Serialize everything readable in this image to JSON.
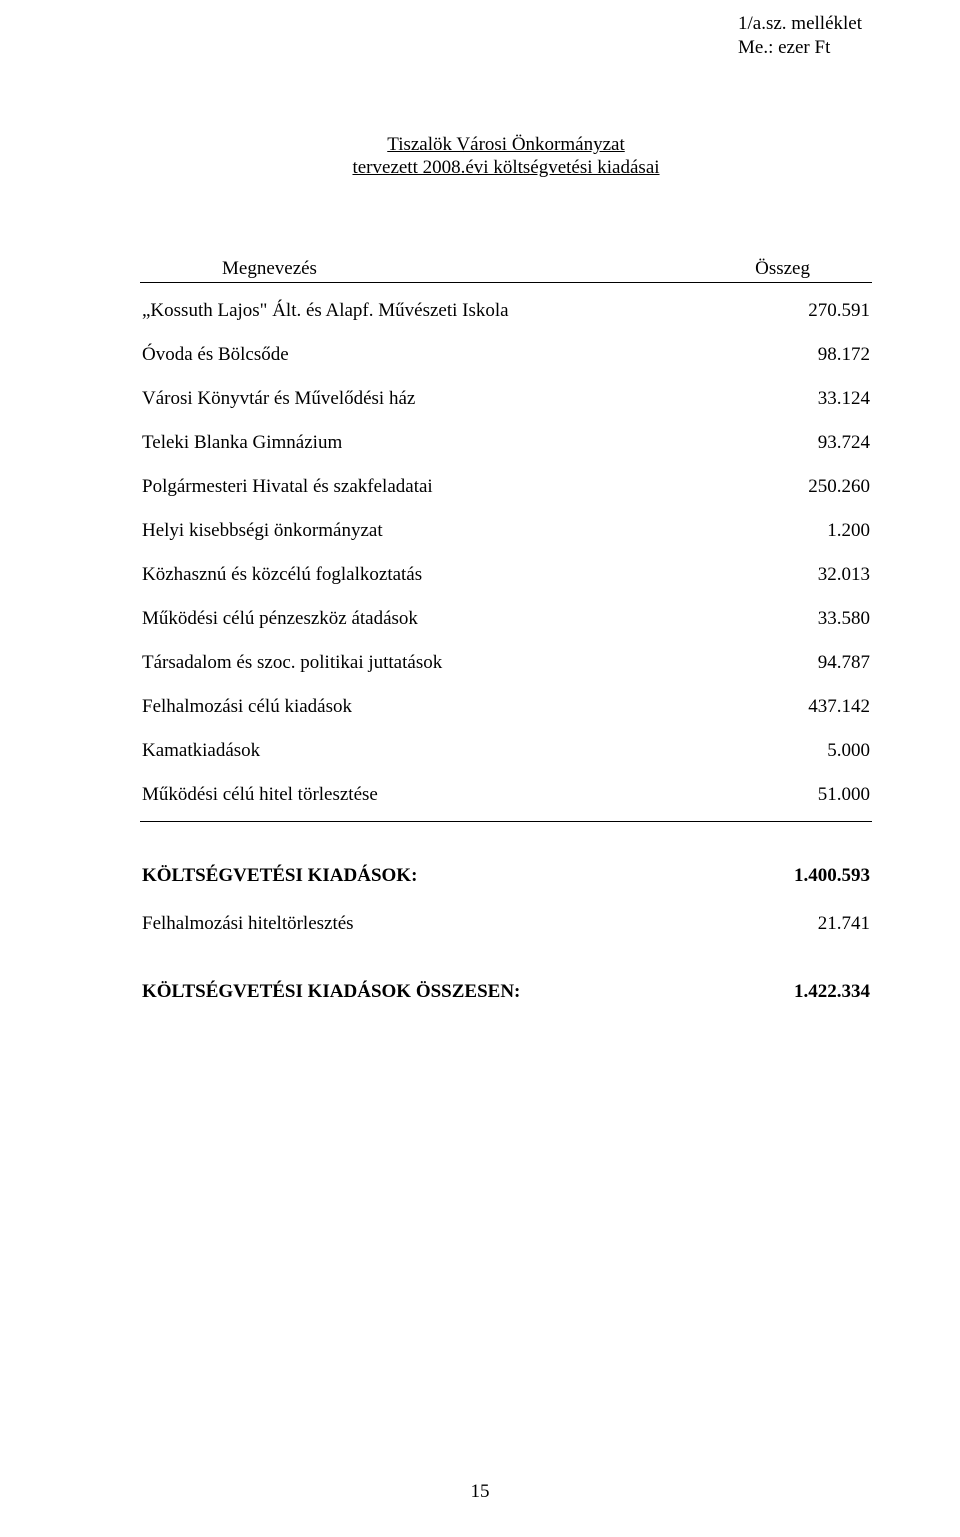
{
  "header": {
    "attachment": "1/a.sz. melléklet",
    "unit": "Me.: ezer Ft"
  },
  "title": {
    "line1": "Tiszalök Városi Önkormányzat",
    "line2": "tervezett 2008.évi költségvetési kiadásai"
  },
  "table": {
    "col_label": "Megnevezés",
    "col_value": "Összeg",
    "rows": [
      {
        "label": "„Kossuth Lajos\" Ált. és Alapf. Művészeti Iskola",
        "value": "270.591"
      },
      {
        "label": "Óvoda és Bölcsőde",
        "value": "98.172"
      },
      {
        "label": "Városi Könyvtár és Művelődési ház",
        "value": "33.124"
      },
      {
        "label": "Teleki Blanka Gimnázium",
        "value": "93.724"
      },
      {
        "label": "Polgármesteri Hivatal és szakfeladatai",
        "value": "250.260"
      },
      {
        "label": "Helyi kisebbségi önkormányzat",
        "value": "1.200"
      },
      {
        "label": "Közhasznú és közcélú foglalkoztatás",
        "value": "32.013"
      },
      {
        "label": "Működési célú pénzeszköz átadások",
        "value": "33.580"
      },
      {
        "label": "Társadalom és szoc. politikai juttatások",
        "value": "94.787"
      },
      {
        "label": "Felhalmozási célú kiadások",
        "value": "437.142"
      },
      {
        "label": "Kamatkiadások",
        "value": "5.000"
      },
      {
        "label": "Működési célú hitel törlesztése",
        "value": "51.000"
      }
    ]
  },
  "summary": {
    "subtotal_label": "KÖLTSÉGVETÉSI KIADÁSOK:",
    "subtotal_value": "1.400.593",
    "extra_label": "Felhalmozási hiteltörlesztés",
    "extra_value": "21.741",
    "total_label": "KÖLTSÉGVETÉSI KIADÁSOK ÖSSZESEN:",
    "total_value": "1.422.334"
  },
  "page_number": "15",
  "fonts": {
    "body_family": "Times New Roman",
    "body_size_pt": 14,
    "bold_weight": "bold"
  },
  "colors": {
    "text": "#000000",
    "background": "#ffffff",
    "rule": "#000000"
  }
}
